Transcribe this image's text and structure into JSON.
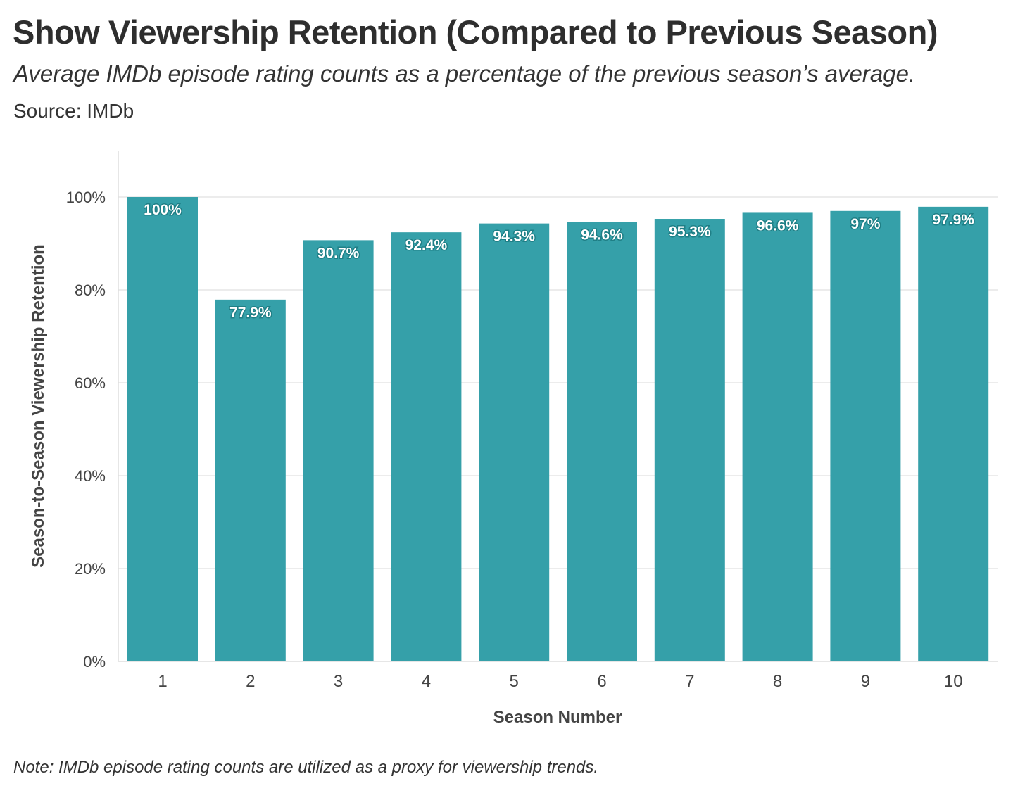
{
  "header": {
    "title": "Show Viewership Retention (Compared to Previous Season)",
    "subtitle": "Average IMDb episode rating counts as a percentage of the previous season’s average.",
    "source": "Source: IMDb"
  },
  "footer": {
    "note": "Note: IMDb episode rating counts are utilized as a proxy for viewership trends."
  },
  "colors": {
    "bar": "#35a0a9",
    "label_outline": "#1f7f86",
    "grid": "#e6e6e6",
    "axis": "#dddddd"
  },
  "chart_data": {
    "type": "bar",
    "title": "Show Viewership Retention (Compared to Previous Season)",
    "xlabel": "Season Number",
    "ylabel": "Season-to-Season Viewership Retention",
    "categories": [
      "1",
      "2",
      "3",
      "4",
      "5",
      "6",
      "7",
      "8",
      "9",
      "10"
    ],
    "values": [
      100,
      77.9,
      90.7,
      92.4,
      94.3,
      94.6,
      95.3,
      96.6,
      97,
      97.9
    ],
    "data_labels": [
      "100%",
      "77.9%",
      "90.7%",
      "92.4%",
      "94.3%",
      "94.6%",
      "95.3%",
      "96.6%",
      "97%",
      "97.9%"
    ],
    "yticks": [
      0,
      20,
      40,
      60,
      80,
      100
    ],
    "ytick_labels": [
      "0%",
      "20%",
      "40%",
      "60%",
      "80%",
      "100%"
    ],
    "ylim": [
      0,
      110
    ],
    "grid": true,
    "legend": "none"
  }
}
